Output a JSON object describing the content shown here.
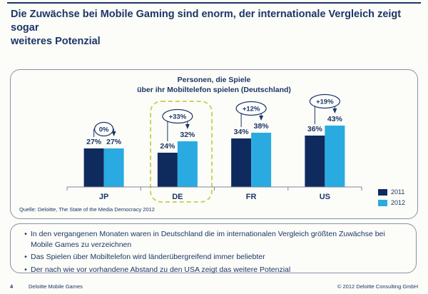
{
  "slide": {
    "title_lines": [
      "Die Zuwächse bei Mobile Gaming sind enorm, der internationale Vergleich zeigt sogar",
      "weiteres Potenzial"
    ],
    "bullets": [
      "In den vergangenen Monaten waren in Deutschland die im internationalen Vergleich größten Zuwächse bei Mobile Games zu verzeichnen",
      "Das Spielen über Mobiltelefon wird länderübergreifend immer beliebter",
      "Der nach wie vor vorhandene Abstand zu den USA zeigt das weitere Potenzial"
    ],
    "footer": {
      "page_number": "4",
      "label": "Deloitte Mobile Games",
      "copyright": "© 2012 Deloitte Consulting GmbH"
    }
  },
  "colors": {
    "navy_2011": "#0f2b5e",
    "blue_2012": "#29abe2",
    "text_navy": "#1c3667",
    "axis": "#7b86a0",
    "highlight_dash": "#ccd35e",
    "panel_border": "#8792ab"
  },
  "chart_data": {
    "type": "bar",
    "title": "Personen, die Spiele über ihr Mobiltelefon spielen (Deutschland)",
    "title_lines": [
      "Personen, die Spiele",
      "über ihr Mobiltelefon spielen (Deutschland)"
    ],
    "categories": [
      "JP",
      "DE",
      "FR",
      "US"
    ],
    "series": [
      {
        "name": "2011",
        "color": "#0f2b5e",
        "values": [
          27,
          24,
          34,
          36
        ]
      },
      {
        "name": "2012",
        "color": "#29abe2",
        "values": [
          27,
          32,
          38,
          43
        ]
      }
    ],
    "value_suffix": "%",
    "growth_labels": [
      "0%",
      "+33%",
      "+12%",
      "+19%"
    ],
    "highlighted_category": "DE",
    "ylim": [
      0,
      50
    ],
    "grid": false,
    "legend_position": "bottom-right",
    "source": "Quelle: Deloitte, The State of the Media Democracy 2012"
  }
}
